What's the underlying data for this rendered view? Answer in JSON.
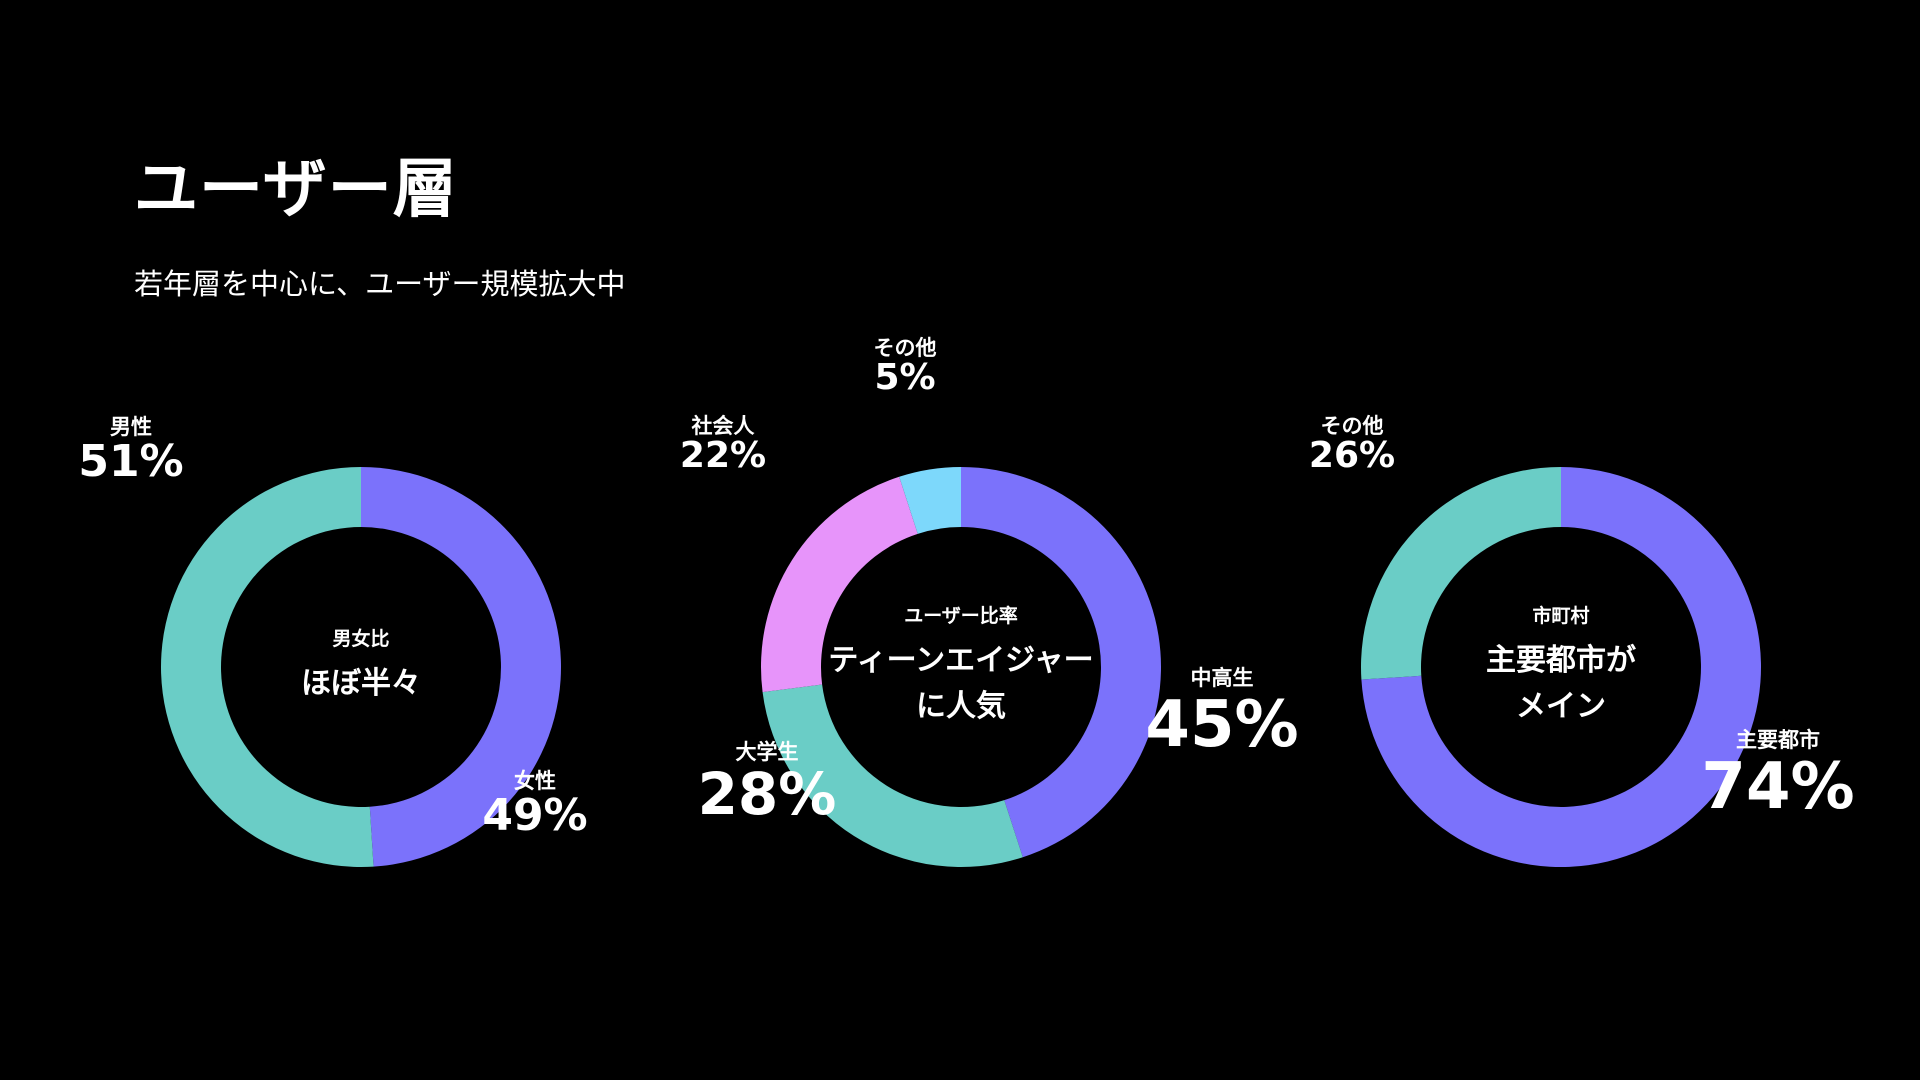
{
  "page": {
    "title": "ユーザー層",
    "subtitle": "若年層を中心に、ユーザー規模拡大中"
  },
  "colors": {
    "background": "#000000",
    "purple": "#7B72FB",
    "teal": "#6ACDC6",
    "pink": "#E794FA",
    "light_blue": "#7DD8FB",
    "text": "#FFFFFF"
  },
  "chart_data": [
    {
      "type": "pie",
      "donut": true,
      "center_small": "男女比",
      "center_large": [
        "ほぼ半々"
      ],
      "slices": [
        {
          "label": "女性",
          "value": 49,
          "display": "49%",
          "color": "#7B72FB"
        },
        {
          "label": "男性",
          "value": 51,
          "display": "51%",
          "color": "#6ACDC6"
        }
      ]
    },
    {
      "type": "pie",
      "donut": true,
      "center_small": "ユーザー比率",
      "center_large": [
        "ティーンエイジャー",
        "に人気"
      ],
      "slices": [
        {
          "label": "中高生",
          "value": 45,
          "display": "45%",
          "color": "#7B72FB"
        },
        {
          "label": "大学生",
          "value": 28,
          "display": "28%",
          "color": "#6ACDC6"
        },
        {
          "label": "社会人",
          "value": 22,
          "display": "22%",
          "color": "#E794FA"
        },
        {
          "label": "その他",
          "value": 5,
          "display": "5%",
          "color": "#7DD8FB"
        }
      ]
    },
    {
      "type": "pie",
      "donut": true,
      "center_small": "市町村",
      "center_large": [
        "主要都市が",
        "メイン"
      ],
      "slices": [
        {
          "label": "主要都市",
          "value": 74,
          "display": "74%",
          "color": "#7B72FB"
        },
        {
          "label": "その他",
          "value": 26,
          "display": "26%",
          "color": "#6ACDC6"
        }
      ]
    }
  ]
}
